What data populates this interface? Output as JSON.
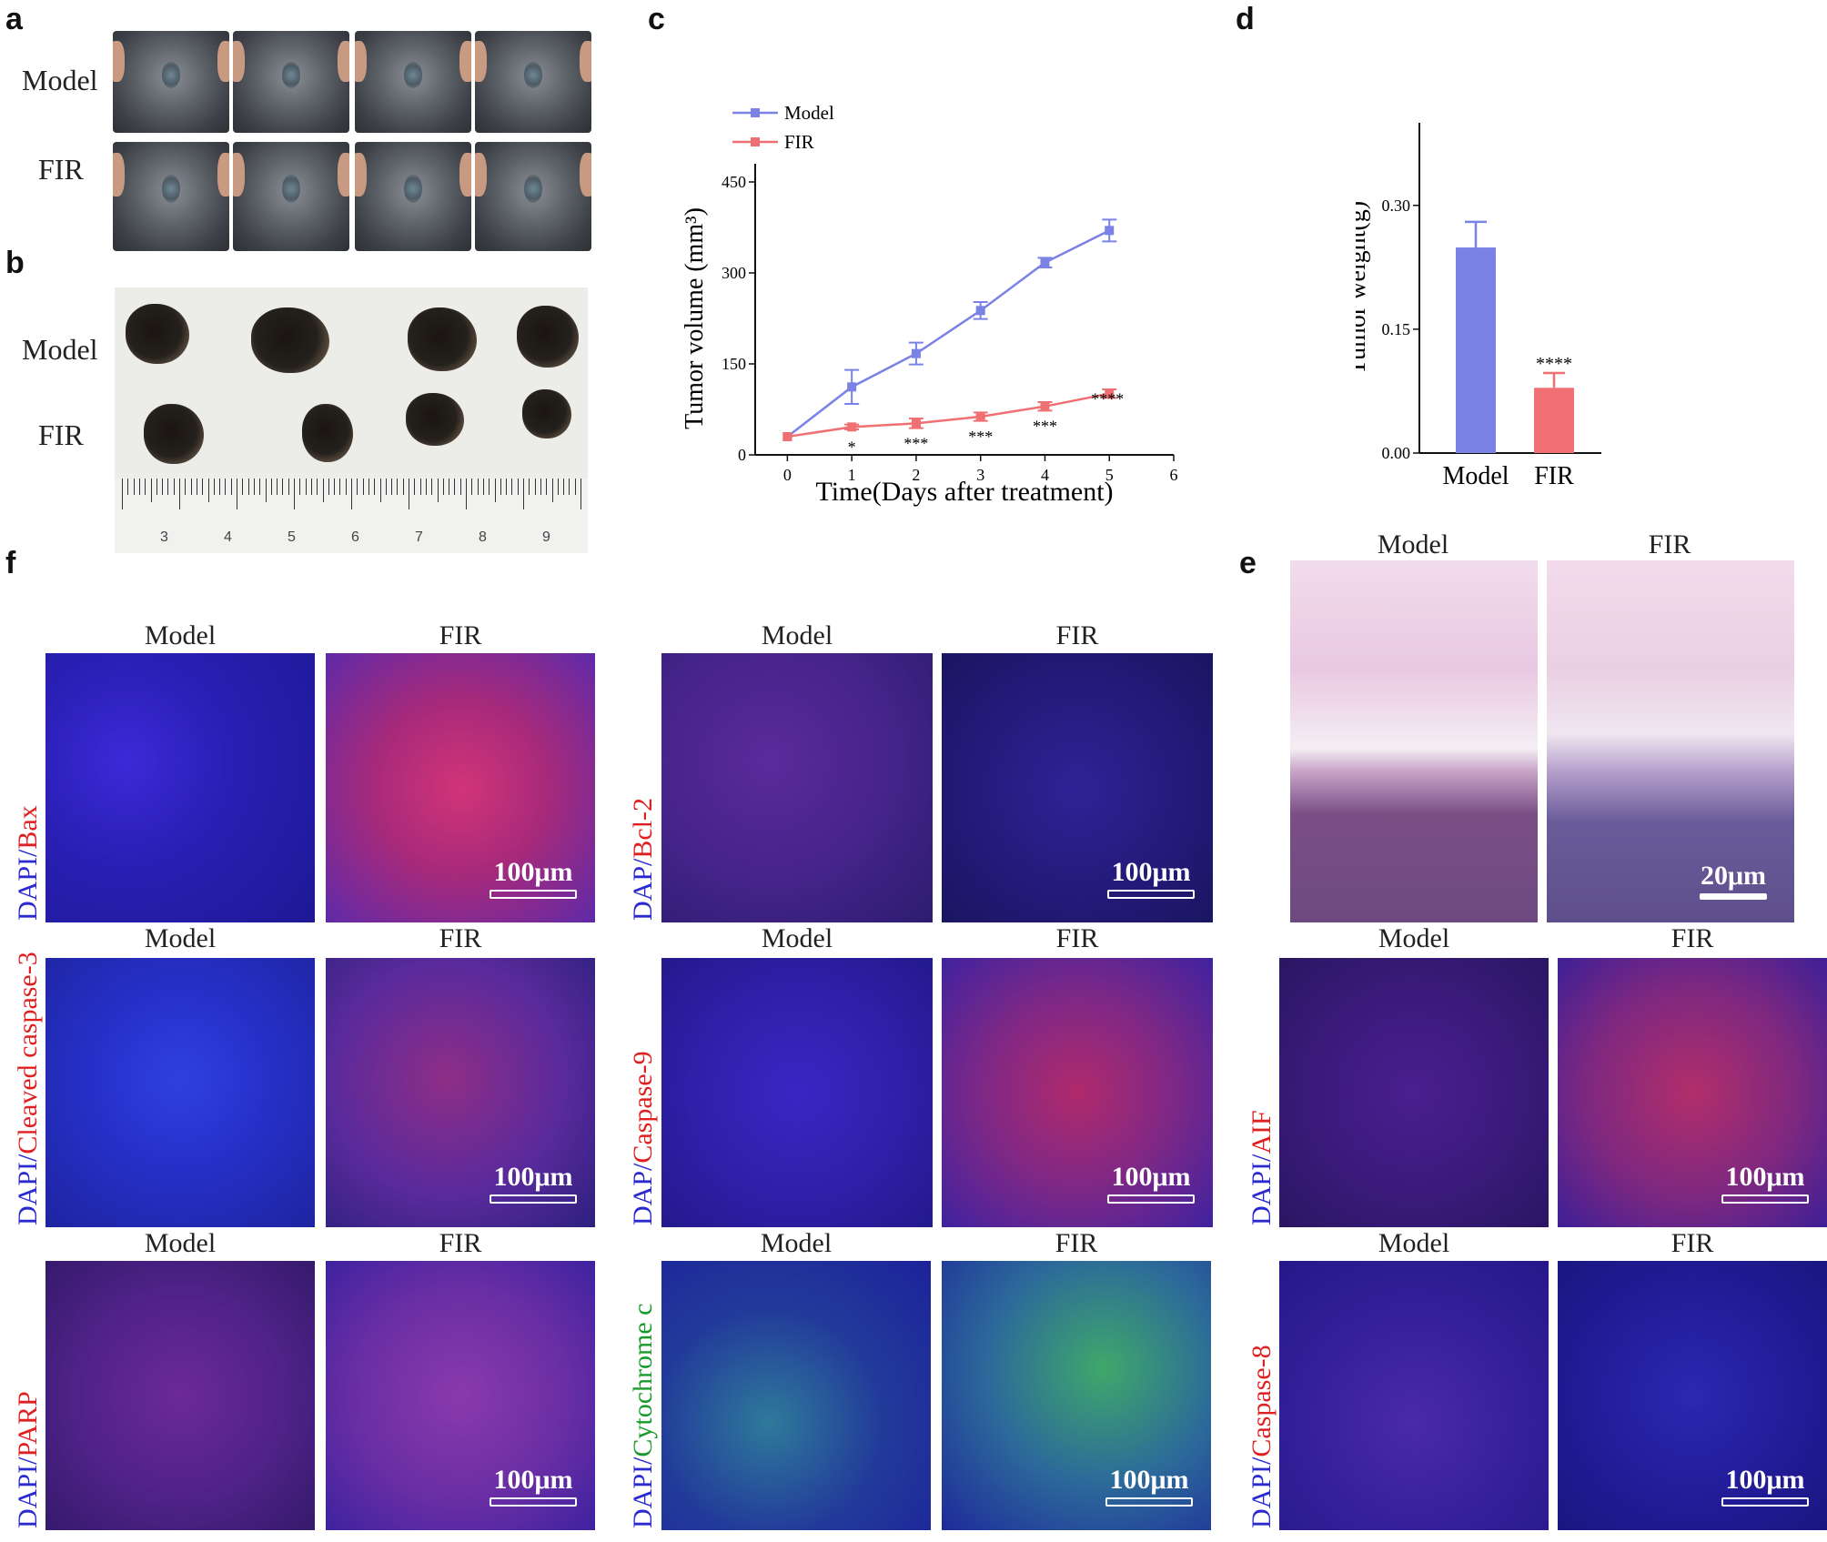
{
  "panels": {
    "a": "a",
    "b": "b",
    "c": "c",
    "d": "d",
    "e": "e",
    "f": "f"
  },
  "groups": {
    "model": "Model",
    "fir": "FIR"
  },
  "ruler_numbers": [
    "3",
    "4",
    "5",
    "6",
    "7",
    "8",
    "9"
  ],
  "chart_data": [
    {
      "type": "line",
      "panel": "c",
      "xlabel": "Time(Days after treatment)",
      "ylabel": "Tumor volume (mm³)",
      "x": [
        0,
        1,
        2,
        3,
        4,
        5
      ],
      "xlim": [
        -0.5,
        6
      ],
      "xticks": [
        "0",
        "1",
        "2",
        "3",
        "4",
        "5",
        "6"
      ],
      "ylim": [
        0,
        480
      ],
      "yticks": [
        "0",
        "150",
        "300",
        "450"
      ],
      "legend_position": "top-left",
      "series": [
        {
          "name": "Model",
          "color": "#7b82e6",
          "values": [
            30,
            112,
            167,
            238,
            317,
            370
          ],
          "errors": [
            0,
            28,
            18,
            14,
            8,
            18
          ]
        },
        {
          "name": "FIR",
          "color": "#f06f73",
          "values": [
            30,
            46,
            52,
            63,
            80,
            101
          ],
          "errors": [
            0,
            4,
            8,
            7,
            7,
            7
          ]
        }
      ],
      "significance": [
        "",
        "*",
        "***",
        "***",
        "***",
        "****"
      ]
    },
    {
      "type": "bar",
      "panel": "d",
      "ylabel": "Tumor weight(g)",
      "categories": [
        "Model",
        "FIR"
      ],
      "values": [
        0.249,
        0.079
      ],
      "errors": [
        0.031,
        0.018
      ],
      "colors": [
        "#7b82e6",
        "#f06f73"
      ],
      "ylim": [
        0,
        0.4
      ],
      "yticks": [
        "0.00",
        "0.15",
        "0.30"
      ],
      "significance": [
        "",
        "****"
      ]
    }
  ],
  "he": {
    "scale": "20μm"
  },
  "fluor": {
    "scale": "100μm",
    "bax": {
      "dapi": "DAPI/",
      "marker": "Bax"
    },
    "bcl2": {
      "dapi": "DAP/",
      "marker": "Bcl-2"
    },
    "casp3": {
      "dapi": "DAPI/",
      "marker": "Cleaved caspase-3"
    },
    "casp9": {
      "dapi": "DAP/",
      "marker": "Caspase-9"
    },
    "aif": {
      "dapi": "DAPI/",
      "marker": "AIF"
    },
    "parp": {
      "dapi": "DAPI/",
      "marker": "PARP"
    },
    "cytc": {
      "dapi": "DAPI/",
      "marker": "Cytochrome c"
    },
    "casp8": {
      "dapi": "DAPI/",
      "marker": "Caspase-8"
    }
  }
}
